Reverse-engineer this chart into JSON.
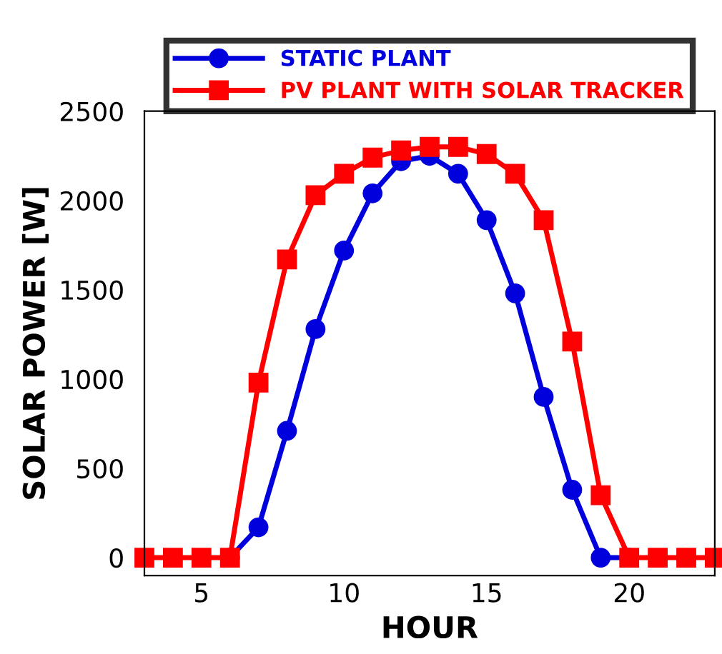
{
  "chart_data": {
    "type": "line",
    "xlabel": "HOUR",
    "ylabel": "SOLAR POWER [W]",
    "x": [
      3,
      4,
      5,
      6,
      7,
      8,
      9,
      10,
      11,
      12,
      13,
      14,
      15,
      16,
      17,
      18,
      19,
      20,
      21,
      22,
      23
    ],
    "series": [
      {
        "name": "STATIC PLANT",
        "color": "#0000dd",
        "marker": "circle",
        "values": [
          null,
          null,
          null,
          0,
          170,
          710,
          1280,
          1720,
          2040,
          2220,
          2250,
          2150,
          1890,
          1480,
          900,
          380,
          0,
          0,
          null,
          null,
          null
        ]
      },
      {
        "name": "PV PLANT WITH SOLAR TRACKER",
        "color": "#ff0000",
        "marker": "square",
        "values": [
          0,
          0,
          0,
          0,
          980,
          1670,
          2030,
          2150,
          2240,
          2280,
          2300,
          2300,
          2260,
          2150,
          1890,
          1210,
          350,
          0,
          0,
          0,
          0
        ]
      }
    ],
    "xlim": [
      3,
      23
    ],
    "ylim": [
      -100,
      2500
    ],
    "xticks": [
      5,
      10,
      15,
      20
    ],
    "yticks": [
      0,
      500,
      1000,
      1500,
      2000,
      2500
    ],
    "grid": false,
    "legend": "top",
    "line_style": "solid"
  }
}
